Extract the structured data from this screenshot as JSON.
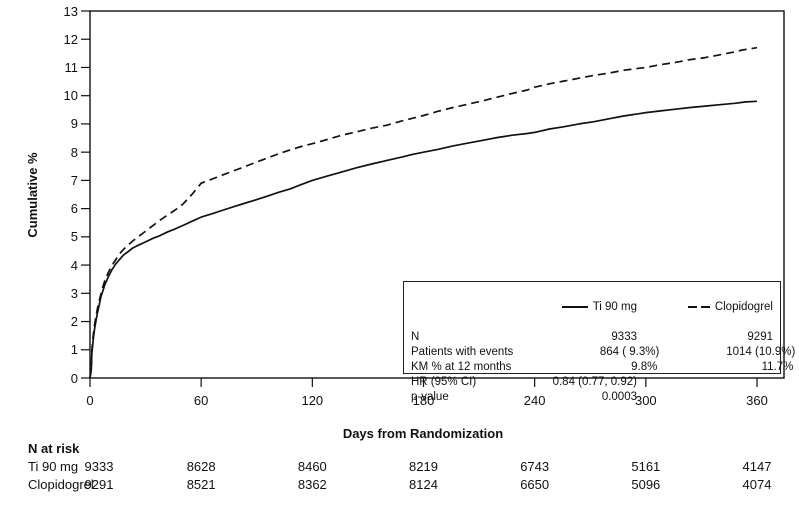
{
  "figure": {
    "ylabel": "Cumulative %",
    "xlabel": "Days from Randomization",
    "line_color": "#111111",
    "background": "#ffffff"
  },
  "chart_data": {
    "type": "line",
    "title": "",
    "xlabel": "Days from Randomization",
    "ylabel": "Cumulative %",
    "xlim": [
      0,
      360
    ],
    "ylim": [
      0,
      13
    ],
    "xticks": [
      0,
      60,
      120,
      180,
      240,
      300,
      360
    ],
    "yticks": [
      0,
      1,
      2,
      3,
      4,
      5,
      6,
      7,
      8,
      9,
      10,
      11,
      12,
      13
    ],
    "grid": false,
    "legend_position": "inside-lower-right",
    "series": [
      {
        "name": "Ti 90 mg",
        "style": "solid",
        "km_pct_at_12_months": 9.8,
        "points": [
          [
            0,
            0
          ],
          [
            0.7,
            0.3
          ],
          [
            1,
            0.9
          ],
          [
            1.5,
            1.2
          ],
          [
            2,
            1.5
          ],
          [
            2.5,
            1.75
          ],
          [
            3,
            1.95
          ],
          [
            4,
            2.3
          ],
          [
            5,
            2.6
          ],
          [
            6,
            2.9
          ],
          [
            7,
            3.1
          ],
          [
            8,
            3.3
          ],
          [
            10,
            3.6
          ],
          [
            12,
            3.85
          ],
          [
            14,
            4.05
          ],
          [
            16,
            4.2
          ],
          [
            18,
            4.35
          ],
          [
            20,
            4.45
          ],
          [
            23,
            4.6
          ],
          [
            26,
            4.7
          ],
          [
            30,
            4.82
          ],
          [
            34,
            4.95
          ],
          [
            38,
            5.05
          ],
          [
            42,
            5.18
          ],
          [
            46,
            5.28
          ],
          [
            50,
            5.4
          ],
          [
            55,
            5.55
          ],
          [
            60,
            5.7
          ],
          [
            66,
            5.82
          ],
          [
            72,
            5.95
          ],
          [
            78,
            6.08
          ],
          [
            84,
            6.2
          ],
          [
            90,
            6.32
          ],
          [
            96,
            6.45
          ],
          [
            102,
            6.58
          ],
          [
            108,
            6.7
          ],
          [
            114,
            6.85
          ],
          [
            120,
            7.0
          ],
          [
            128,
            7.15
          ],
          [
            136,
            7.3
          ],
          [
            144,
            7.45
          ],
          [
            152,
            7.58
          ],
          [
            160,
            7.7
          ],
          [
            168,
            7.82
          ],
          [
            174,
            7.92
          ],
          [
            180,
            8.0
          ],
          [
            188,
            8.1
          ],
          [
            196,
            8.22
          ],
          [
            204,
            8.32
          ],
          [
            212,
            8.42
          ],
          [
            220,
            8.52
          ],
          [
            228,
            8.6
          ],
          [
            236,
            8.66
          ],
          [
            240,
            8.7
          ],
          [
            248,
            8.82
          ],
          [
            256,
            8.9
          ],
          [
            264,
            9.0
          ],
          [
            272,
            9.08
          ],
          [
            280,
            9.18
          ],
          [
            288,
            9.28
          ],
          [
            296,
            9.36
          ],
          [
            300,
            9.4
          ],
          [
            308,
            9.46
          ],
          [
            316,
            9.52
          ],
          [
            324,
            9.58
          ],
          [
            332,
            9.63
          ],
          [
            340,
            9.68
          ],
          [
            348,
            9.73
          ],
          [
            354,
            9.78
          ],
          [
            360,
            9.8
          ]
        ]
      },
      {
        "name": "Clopidogrel",
        "style": "dashed",
        "km_pct_at_12_months": 11.7,
        "points": [
          [
            0,
            0
          ],
          [
            0.7,
            0.35
          ],
          [
            1,
            1.0
          ],
          [
            1.5,
            1.35
          ],
          [
            2,
            1.65
          ],
          [
            2.5,
            1.9
          ],
          [
            3,
            2.1
          ],
          [
            4,
            2.45
          ],
          [
            5,
            2.75
          ],
          [
            6,
            3.0
          ],
          [
            7,
            3.25
          ],
          [
            8,
            3.45
          ],
          [
            10,
            3.75
          ],
          [
            12,
            4.0
          ],
          [
            14,
            4.2
          ],
          [
            16,
            4.4
          ],
          [
            18,
            4.55
          ],
          [
            20,
            4.68
          ],
          [
            23,
            4.85
          ],
          [
            26,
            5.0
          ],
          [
            30,
            5.2
          ],
          [
            34,
            5.4
          ],
          [
            38,
            5.6
          ],
          [
            42,
            5.78
          ],
          [
            46,
            5.95
          ],
          [
            50,
            6.15
          ],
          [
            55,
            6.5
          ],
          [
            60,
            6.9
          ],
          [
            66,
            7.05
          ],
          [
            72,
            7.2
          ],
          [
            78,
            7.35
          ],
          [
            84,
            7.5
          ],
          [
            90,
            7.65
          ],
          [
            96,
            7.8
          ],
          [
            102,
            7.95
          ],
          [
            108,
            8.08
          ],
          [
            114,
            8.2
          ],
          [
            120,
            8.3
          ],
          [
            128,
            8.45
          ],
          [
            136,
            8.6
          ],
          [
            144,
            8.72
          ],
          [
            152,
            8.85
          ],
          [
            160,
            8.95
          ],
          [
            168,
            9.1
          ],
          [
            174,
            9.2
          ],
          [
            180,
            9.3
          ],
          [
            188,
            9.45
          ],
          [
            196,
            9.58
          ],
          [
            204,
            9.7
          ],
          [
            212,
            9.82
          ],
          [
            220,
            9.95
          ],
          [
            228,
            10.08
          ],
          [
            236,
            10.2
          ],
          [
            240,
            10.3
          ],
          [
            248,
            10.42
          ],
          [
            256,
            10.52
          ],
          [
            264,
            10.62
          ],
          [
            272,
            10.72
          ],
          [
            280,
            10.8
          ],
          [
            288,
            10.9
          ],
          [
            296,
            10.97
          ],
          [
            300,
            11.0
          ],
          [
            308,
            11.1
          ],
          [
            316,
            11.18
          ],
          [
            324,
            11.28
          ],
          [
            332,
            11.35
          ],
          [
            340,
            11.45
          ],
          [
            348,
            11.55
          ],
          [
            352,
            11.62
          ],
          [
            360,
            11.7
          ]
        ]
      }
    ]
  },
  "legend_box": {
    "header": {
      "ti": "Ti 90 mg",
      "clo": "Clopidogrel"
    },
    "rows": [
      {
        "label": "N",
        "ti": "9333",
        "clo": "9291"
      },
      {
        "label": "Patients with events",
        "ti": "864 ( 9.3%)",
        "clo": "1014 (10.9%)"
      },
      {
        "label": "KM % at 12 months",
        "ti": "9.8%",
        "clo": "11.7%"
      },
      {
        "label": "HR (95% CI)",
        "ti": "0.84 (0.77, 0.92)",
        "clo": ""
      },
      {
        "label": "p-value",
        "ti": "0.0003",
        "clo": ""
      }
    ]
  },
  "risk_table": {
    "title": "N at risk",
    "rows": [
      {
        "label": "Ti 90 mg",
        "values": [
          "9333",
          "8628",
          "8460",
          "8219",
          "6743",
          "5161",
          "4147"
        ]
      },
      {
        "label": "Clopidogrel",
        "values": [
          "9291",
          "8521",
          "8362",
          "8124",
          "6650",
          "5096",
          "4074"
        ]
      }
    ]
  }
}
